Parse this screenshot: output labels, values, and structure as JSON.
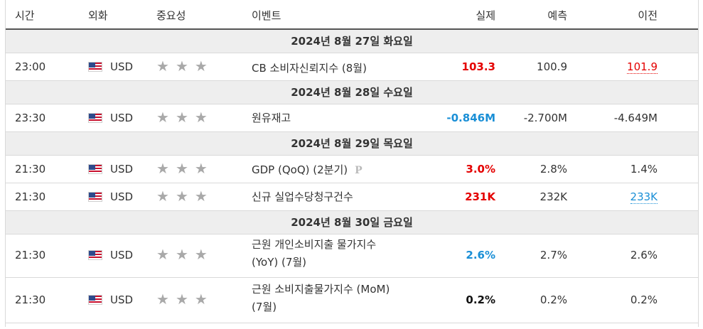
{
  "headers": {
    "time": "시간",
    "currency": "외화",
    "importance": "중요성",
    "event": "이벤트",
    "actual": "실제",
    "forecast": "예측",
    "previous": "이전"
  },
  "days": [
    "2024년 8월 27일 화요일",
    "2024년 8월 28일 수요일",
    "2024년 8월 29일 목요일",
    "2024년 8월 30일 금요일"
  ],
  "events": [
    {
      "time": "23:00",
      "currency": "USD",
      "event": "CB 소비자신뢰지수 (8월)",
      "actual": "103.3",
      "forecast": "100.9",
      "previous": "101.9"
    },
    {
      "time": "23:30",
      "currency": "USD",
      "event": "원유재고",
      "actual": "-0.846M",
      "forecast": "-2.700M",
      "previous": "-4.649M"
    },
    {
      "time": "21:30",
      "currency": "USD",
      "event": "GDP (QoQ) (2분기)",
      "actual": "3.0%",
      "forecast": "2.8%",
      "previous": "1.4%",
      "badge": "P"
    },
    {
      "time": "21:30",
      "currency": "USD",
      "event": "신규 실업수당청구건수",
      "actual": "231K",
      "forecast": "232K",
      "previous": "233K"
    },
    {
      "time": "21:30",
      "currency": "USD",
      "event_line1": "근원 개인소비지출 물가지수",
      "event_line2": "(YoY) (7월)",
      "actual": "2.6%",
      "forecast": "2.7%",
      "previous": "2.6%"
    },
    {
      "time": "21:30",
      "currency": "USD",
      "event_line1": "근원 소비지출물가지수 (MoM)",
      "event_line2": "(7월)",
      "actual": "0.2%",
      "forecast": "0.2%",
      "previous": "0.2%"
    }
  ],
  "importance_level": 3,
  "colors": {
    "up": "#e40000",
    "down": "#1a8fd6",
    "neutral": "#111111",
    "star": "#a9a9a9",
    "day_bg": "#eeeeee"
  }
}
